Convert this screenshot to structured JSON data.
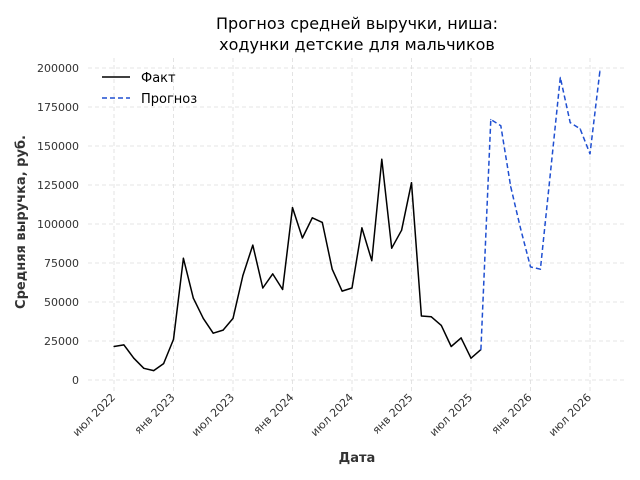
{
  "chart_data": {
    "type": "line",
    "title_line1": "Прогноз средней выручки, ниша:",
    "title_line2": "ходунки детские для мальчиков",
    "xlabel": "Дата",
    "ylabel": "Средняя выручка, руб.",
    "ylim": [
      0,
      205000
    ],
    "y_ticks": [
      0,
      25000,
      50000,
      75000,
      100000,
      125000,
      150000,
      175000,
      200000
    ],
    "x_ticks": [
      {
        "label": "июл 2022",
        "date": "2022-07"
      },
      {
        "label": "янв 2023",
        "date": "2023-01"
      },
      {
        "label": "июл 2023",
        "date": "2023-07"
      },
      {
        "label": "янв 2024",
        "date": "2024-01"
      },
      {
        "label": "июл 2024",
        "date": "2024-07"
      },
      {
        "label": "янв 2025",
        "date": "2025-01"
      },
      {
        "label": "июл 2025",
        "date": "2025-07"
      },
      {
        "label": "янв 2026",
        "date": "2026-01"
      },
      {
        "label": "июл 2026",
        "date": "2026-07"
      }
    ],
    "grid": true,
    "legend_position": "top-left",
    "series": [
      {
        "name": "Факт",
        "color": "#000000",
        "style": "solid",
        "x": [
          "2022-07",
          "2022-08",
          "2022-09",
          "2022-10",
          "2022-11",
          "2022-12",
          "2023-01",
          "2023-02",
          "2023-03",
          "2023-04",
          "2023-05",
          "2023-06",
          "2023-07",
          "2023-08",
          "2023-09",
          "2023-10",
          "2023-11",
          "2023-12",
          "2024-01",
          "2024-02",
          "2024-03",
          "2024-04",
          "2024-05",
          "2024-06",
          "2024-07",
          "2024-08",
          "2024-09",
          "2024-10",
          "2024-11",
          "2024-12",
          "2025-01",
          "2025-02",
          "2025-03",
          "2025-04",
          "2025-05",
          "2025-06",
          "2025-07",
          "2025-08"
        ],
        "values": [
          21500,
          22500,
          14000,
          7500,
          6000,
          10500,
          26000,
          78000,
          52500,
          39500,
          30000,
          32000,
          39500,
          67000,
          86500,
          59000,
          68000,
          58000,
          110500,
          91000,
          104000,
          101000,
          71000,
          57000,
          59000,
          97500,
          76500,
          141500,
          84500,
          96000,
          126500,
          41000,
          40500,
          35000,
          21500,
          27000,
          14000,
          19500
        ]
      },
      {
        "name": "Прогноз",
        "color": "#1f4fd1",
        "style": "dashed",
        "x": [
          "2025-08",
          "2025-09",
          "2025-10",
          "2025-11",
          "2025-12",
          "2026-01",
          "2026-02",
          "2026-03",
          "2026-04",
          "2026-05",
          "2026-06",
          "2026-07",
          "2026-08"
        ],
        "values": [
          19500,
          167000,
          163000,
          124000,
          97000,
          72500,
          71000,
          132000,
          194000,
          165000,
          161000,
          145000,
          198000
        ]
      }
    ]
  }
}
